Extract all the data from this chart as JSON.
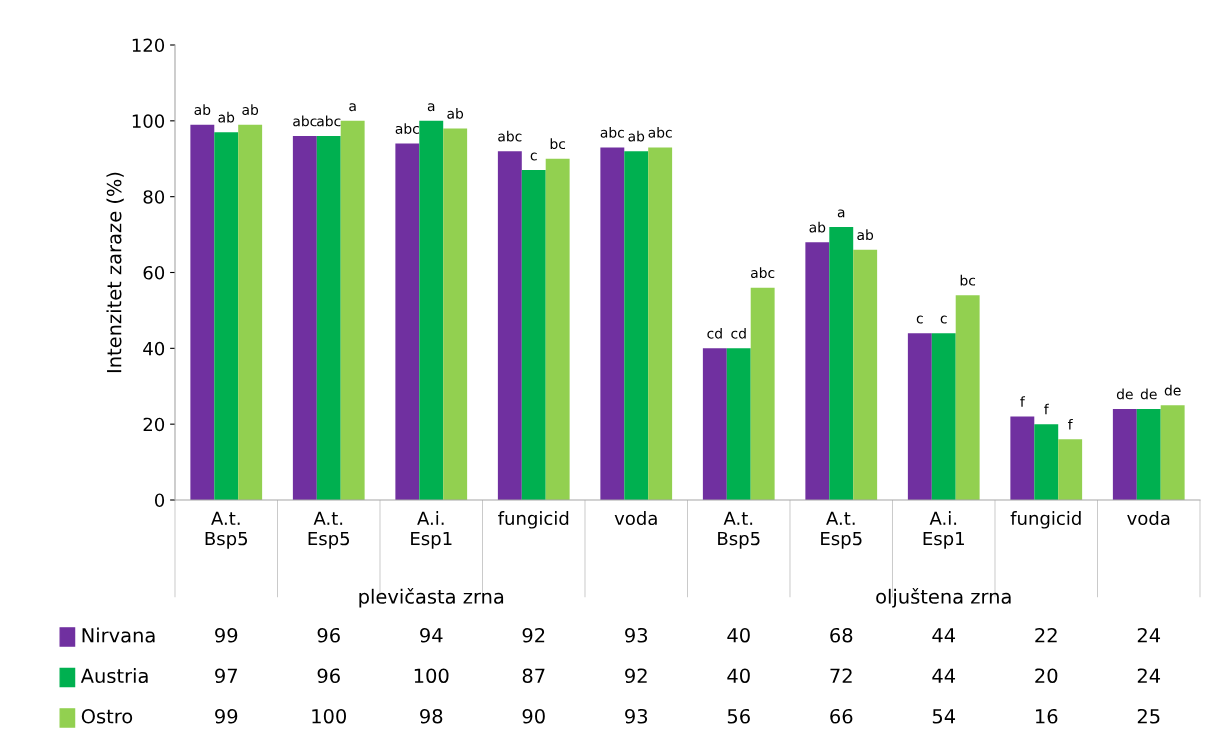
{
  "chart_data": {
    "type": "bar",
    "ylabel": "Intenzitet zaraze (%)",
    "categories": [
      "A.t.\nBsp5",
      "A.t.\nEsp5",
      "A.i.\nEsp1",
      "fungicid",
      "voda",
      "A.t.\nBsp5",
      "A.t.\nEsp5",
      "A.i.\nEsp1",
      "fungicid",
      "voda"
    ],
    "series": [
      {
        "name": "Nirvana",
        "color": "#7030a0",
        "values": [
          99,
          96,
          94,
          92,
          93,
          40,
          68,
          44,
          22,
          24
        ]
      },
      {
        "name": "Austria",
        "color": "#00b050",
        "values": [
          97,
          96,
          100,
          87,
          92,
          40,
          72,
          44,
          20,
          24
        ]
      },
      {
        "name": "Ostro",
        "color": "#92d050",
        "values": [
          99,
          100,
          98,
          90,
          93,
          56,
          66,
          54,
          16,
          25
        ]
      }
    ],
    "annotations": [
      "plevičasta zrna",
      "oljuštena zrna",
      "ab",
      "ab",
      "ab",
      "abc",
      "abc",
      "a",
      "abc",
      "a",
      "ab",
      "abc",
      "c",
      "bc",
      "abc",
      "ab",
      "abc",
      "cd",
      "cd",
      "abc",
      "ab",
      "a",
      "ab",
      "c",
      "c",
      "bc",
      "f",
      "f",
      "f",
      "de",
      "de",
      "de"
    ],
    "ylim": [
      0,
      120
    ],
    "yticks": [
      0,
      20,
      40,
      60,
      80,
      100,
      120
    ],
    "data_labels": true,
    "legend": "bottom",
    "grid": false
  }
}
